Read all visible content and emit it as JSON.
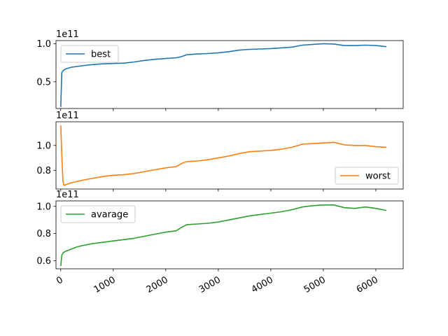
{
  "figure": {
    "background": "#ffffff"
  },
  "chart_data": [
    {
      "type": "line",
      "offset_label": "1e11",
      "x_tick_labels_visible": false,
      "xlim": [
        -90,
        6520
      ],
      "ylim": [
        0.15,
        1.04
      ],
      "y_ticks": [
        0.5,
        1.0
      ],
      "y_tick_labels": [
        "0.5",
        "1.0"
      ],
      "legend_position": "upper left",
      "series": [
        {
          "name": "best",
          "color": "#1f77b4",
          "x": [
            0,
            20,
            50,
            100,
            200,
            400,
            600,
            800,
            1000,
            1200,
            1400,
            1600,
            1800,
            2000,
            2200,
            2300,
            2400,
            2600,
            2800,
            3000,
            3200,
            3400,
            3600,
            3800,
            4000,
            4200,
            4400,
            4600,
            4800,
            5000,
            5200,
            5400,
            5600,
            5800,
            6000,
            6200
          ],
          "y": [
            0.17,
            0.62,
            0.65,
            0.67,
            0.69,
            0.71,
            0.725,
            0.735,
            0.74,
            0.745,
            0.76,
            0.78,
            0.795,
            0.805,
            0.815,
            0.83,
            0.855,
            0.865,
            0.87,
            0.88,
            0.895,
            0.915,
            0.925,
            0.93,
            0.935,
            0.945,
            0.955,
            0.98,
            0.99,
            1.0,
            0.995,
            0.975,
            0.975,
            0.98,
            0.975,
            0.96
          ]
        }
      ]
    },
    {
      "type": "line",
      "offset_label": "1e11",
      "x_tick_labels_visible": false,
      "xlim": [
        -90,
        6520
      ],
      "ylim": [
        0.65,
        1.19
      ],
      "y_ticks": [
        0.8,
        1.0
      ],
      "y_tick_labels": [
        "0.8",
        "1.0"
      ],
      "legend_position": "lower right",
      "series": [
        {
          "name": "worst",
          "color": "#ff7f0e",
          "x": [
            0,
            20,
            40,
            60,
            100,
            200,
            400,
            600,
            800,
            1000,
            1200,
            1400,
            1600,
            1800,
            2000,
            2200,
            2300,
            2400,
            2600,
            2800,
            3000,
            3200,
            3400,
            3600,
            3800,
            4000,
            4200,
            4400,
            4600,
            4800,
            5000,
            5200,
            5400,
            5600,
            5800,
            6000,
            6200
          ],
          "y": [
            1.16,
            0.92,
            0.72,
            0.68,
            0.685,
            0.7,
            0.72,
            0.735,
            0.75,
            0.76,
            0.765,
            0.775,
            0.79,
            0.805,
            0.82,
            0.83,
            0.855,
            0.87,
            0.875,
            0.885,
            0.9,
            0.915,
            0.935,
            0.95,
            0.955,
            0.96,
            0.97,
            0.985,
            1.01,
            1.015,
            1.02,
            1.025,
            1.005,
            1.0,
            1.0,
            0.99,
            0.985
          ]
        }
      ]
    },
    {
      "type": "line",
      "offset_label": "1e11",
      "x_tick_labels_visible": true,
      "xlim": [
        -90,
        6520
      ],
      "ylim": [
        0.54,
        1.04
      ],
      "y_ticks": [
        0.6,
        0.8,
        1.0
      ],
      "y_tick_labels": [
        "0.6",
        "0.8",
        "1.0"
      ],
      "x_ticks": [
        0,
        1000,
        2000,
        3000,
        4000,
        5000,
        6000
      ],
      "x_tick_labels": [
        "0",
        "1000",
        "2000",
        "3000",
        "4000",
        "5000",
        "6000"
      ],
      "x_tick_rotation_deg": 30,
      "legend_position": "upper left",
      "series": [
        {
          "name": "avarage",
          "color": "#2ca02c",
          "x": [
            0,
            20,
            50,
            100,
            200,
            300,
            400,
            600,
            800,
            1000,
            1200,
            1400,
            1600,
            1800,
            2000,
            2200,
            2300,
            2400,
            2600,
            2800,
            3000,
            3200,
            3400,
            3600,
            3800,
            4000,
            4200,
            4400,
            4600,
            4800,
            5000,
            5200,
            5400,
            5600,
            5800,
            6000,
            6200
          ],
          "y": [
            0.56,
            0.64,
            0.66,
            0.67,
            0.685,
            0.7,
            0.71,
            0.725,
            0.735,
            0.745,
            0.755,
            0.765,
            0.78,
            0.795,
            0.81,
            0.82,
            0.845,
            0.865,
            0.87,
            0.875,
            0.885,
            0.9,
            0.915,
            0.93,
            0.94,
            0.95,
            0.96,
            0.975,
            0.995,
            1.005,
            1.01,
            1.01,
            0.99,
            0.985,
            0.995,
            0.985,
            0.97
          ]
        }
      ]
    }
  ]
}
